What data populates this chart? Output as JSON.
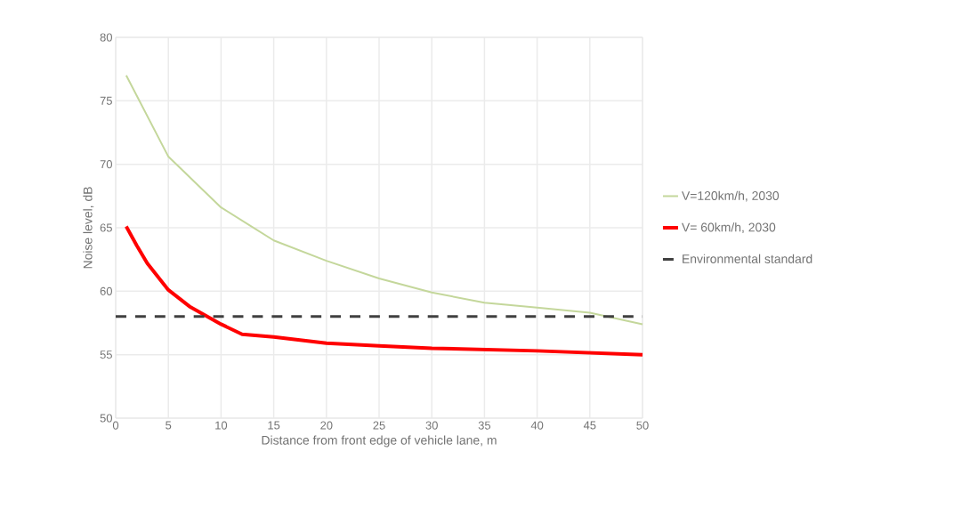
{
  "chart_data": {
    "type": "line",
    "xlabel": "Distance from front edge of vehicle lane, m",
    "ylabel": "Noise level, dB",
    "xlim": [
      0,
      50
    ],
    "xticks": [
      0,
      5,
      10,
      15,
      20,
      25,
      30,
      35,
      40,
      45,
      50
    ],
    "ylim": [
      50,
      80
    ],
    "yticks": [
      50,
      55,
      60,
      65,
      70,
      75,
      80
    ],
    "grid": true,
    "legend": "right",
    "series": [
      {
        "name": "V=120km/h, 2030",
        "color": "#c4d79b",
        "x": [
          1,
          5,
          10,
          15,
          20,
          25,
          30,
          35,
          40,
          45,
          50
        ],
        "values": [
          77.0,
          70.6,
          66.6,
          64.0,
          62.4,
          61.0,
          59.9,
          59.1,
          58.7,
          58.3,
          57.4
        ]
      },
      {
        "name": "V= 60km/h, 2030",
        "color": "#ff0000",
        "x": [
          1,
          2,
          3,
          5,
          7,
          10,
          12,
          15,
          20,
          25,
          30,
          40,
          50
        ],
        "values": [
          65.1,
          63.6,
          62.2,
          60.1,
          58.8,
          57.4,
          56.6,
          56.4,
          55.9,
          55.7,
          55.5,
          55.3,
          55.0
        ]
      }
    ],
    "ref_lines": [
      {
        "axis": "y",
        "value": 58,
        "label": "Environmental standard",
        "color": "#404040",
        "line_style": "dashed"
      }
    ]
  }
}
